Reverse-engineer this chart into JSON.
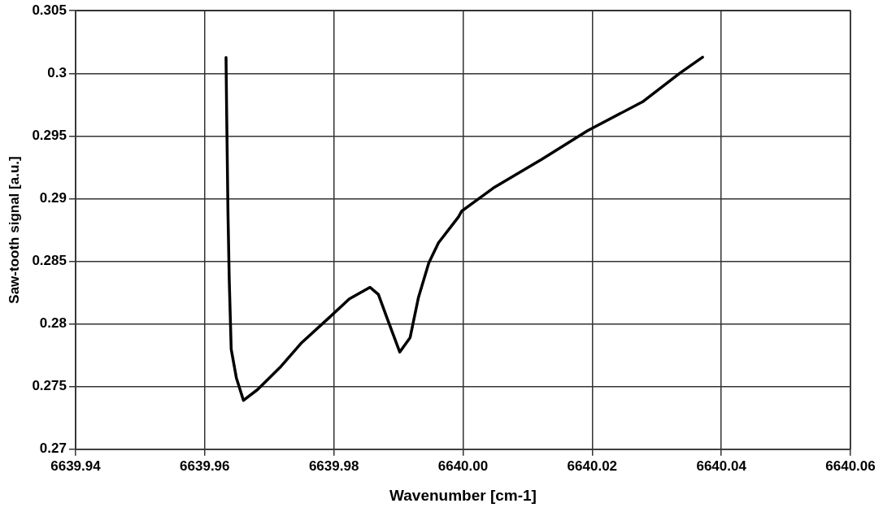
{
  "chart_data": {
    "type": "line",
    "xlabel": "Wavenumber [cm-1]",
    "ylabel": "Saw-tooth signal [a.u.]",
    "x": [
      6639.9633,
      6639.9634,
      6639.9636,
      6639.9638,
      6639.9641,
      6639.9649,
      6639.966,
      6639.9682,
      6639.9718,
      6639.9749,
      6639.9793,
      6639.9824,
      6639.9856,
      6639.9869,
      6639.9882,
      6639.9902,
      6639.9918,
      6639.9931,
      6639.9947,
      6639.9962,
      6639.9993,
      6639.9998,
      6640.0047,
      6640.0122,
      6640.0193,
      6640.0278,
      6640.0336,
      6640.0371
    ],
    "series": [
      {
        "color": "#000000",
        "values": [
          0.30127,
          0.29681,
          0.28889,
          0.2835,
          0.27799,
          0.2757,
          0.2739,
          0.27477,
          0.27661,
          0.27845,
          0.28052,
          0.282,
          0.28293,
          0.28235,
          0.28052,
          0.27776,
          0.2789,
          0.28212,
          0.28488,
          0.28648,
          0.28855,
          0.28901,
          0.29085,
          0.29314,
          0.29543,
          0.29773,
          0.30003,
          0.30129
        ]
      }
    ],
    "xlim": [
      6639.94,
      6640.06
    ],
    "xticks": [
      6639.94,
      6639.96,
      6639.98,
      {
        "value": 6640,
        "label": "6640.00"
      },
      6640.02,
      6640.04,
      6640.06
    ],
    "ylim": [
      0.27,
      0.305
    ],
    "yticks": [
      0.27,
      0.275,
      0.28,
      0.285,
      0.29,
      0.295,
      0.3,
      0.305
    ],
    "grid": true,
    "legend": false,
    "marker": "none",
    "line_style": "solid"
  }
}
